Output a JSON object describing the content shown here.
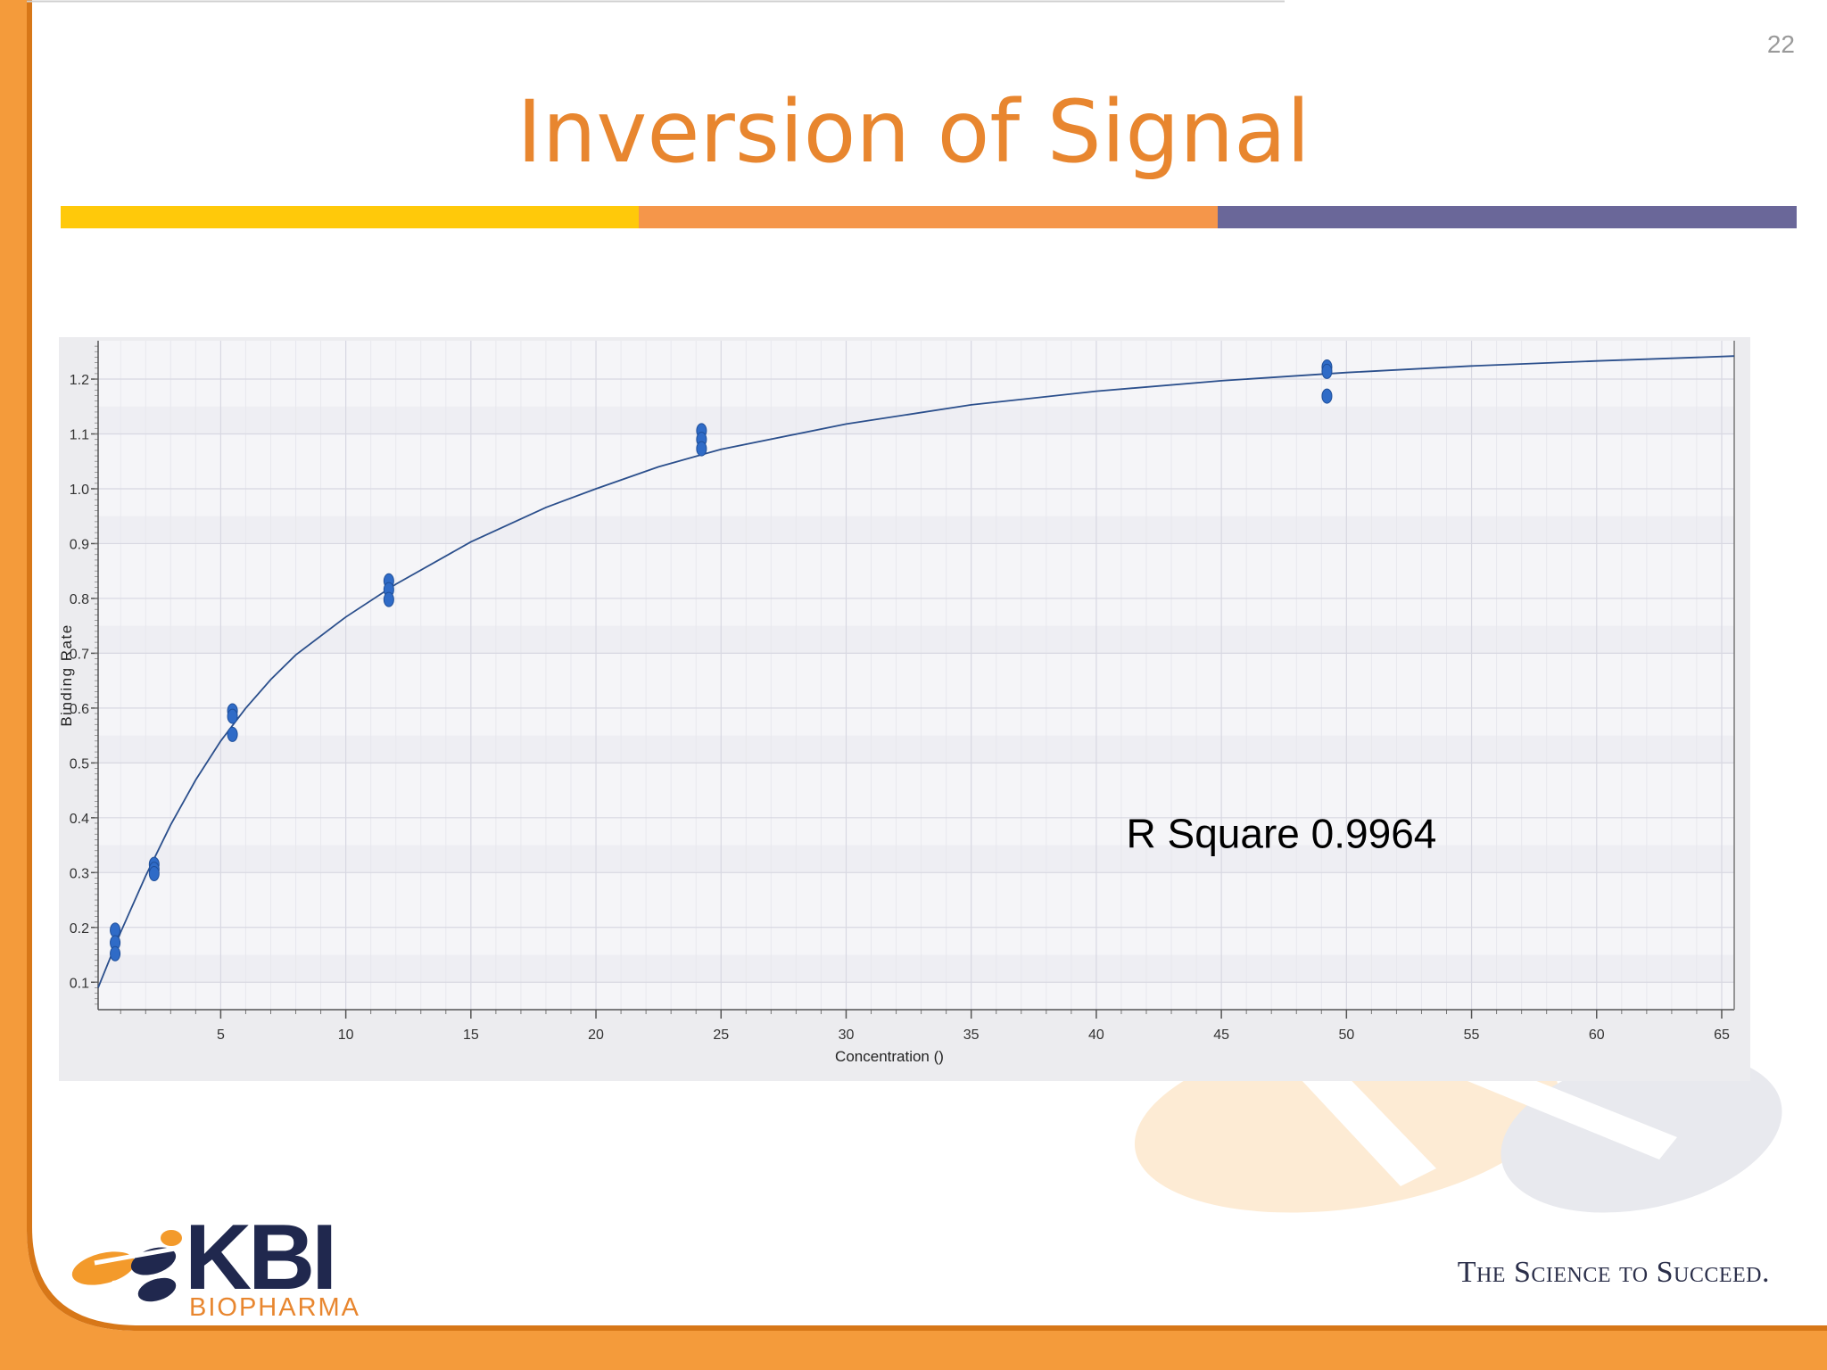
{
  "slide": {
    "page_number": "22",
    "title": "Inversion of Signal",
    "tagline": "The Science to Succeed.",
    "logo": {
      "name": "KBI",
      "subtitle": "BIOPHARMA"
    },
    "colors": {
      "accent_orange": "#e8862f",
      "bar_yellow": "#ffc90a",
      "bar_orange": "#f5964a",
      "bar_purple": "#6a6799",
      "brand_navy": "#20284e"
    }
  },
  "chart_data": {
    "type": "scatter",
    "title": "",
    "xlabel": "Concentration ()",
    "ylabel": "Binding Rate",
    "xlim": [
      0.1,
      65.5
    ],
    "ylim": [
      0.05,
      1.27
    ],
    "x_ticks": [
      "5",
      "10",
      "15",
      "20",
      "25",
      "30",
      "35",
      "40",
      "45",
      "50",
      "55",
      "60",
      "65"
    ],
    "y_ticks": [
      "0.1",
      "0.2",
      "0.3",
      "0.4",
      "0.5",
      "0.6",
      "0.7",
      "0.8",
      "0.9",
      "1.0",
      "1.1",
      "1.2"
    ],
    "grid": true,
    "annotation": "R Square 0.9964",
    "series": [
      {
        "points": [
          {
            "x": 0.78,
            "y": 0.195
          },
          {
            "x": 0.78,
            "y": 0.172
          },
          {
            "x": 0.78,
            "y": 0.152
          },
          {
            "x": 2.34,
            "y": 0.315
          },
          {
            "x": 2.34,
            "y": 0.306
          },
          {
            "x": 2.34,
            "y": 0.298
          },
          {
            "x": 5.47,
            "y": 0.595
          },
          {
            "x": 5.47,
            "y": 0.585
          },
          {
            "x": 5.47,
            "y": 0.552
          },
          {
            "x": 11.72,
            "y": 0.832
          },
          {
            "x": 11.72,
            "y": 0.816
          },
          {
            "x": 11.72,
            "y": 0.798
          },
          {
            "x": 24.22,
            "y": 1.106
          },
          {
            "x": 24.22,
            "y": 1.09
          },
          {
            "x": 24.22,
            "y": 1.073
          },
          {
            "x": 49.22,
            "y": 1.222
          },
          {
            "x": 49.22,
            "y": 1.214
          },
          {
            "x": 49.22,
            "y": 1.169
          }
        ]
      }
    ],
    "fit_curve": {
      "x": [
        0.1,
        1,
        2,
        3,
        4,
        5,
        6,
        7,
        8,
        10,
        12,
        15,
        18,
        20,
        22.5,
        25,
        30,
        35,
        40,
        45,
        50,
        55,
        60,
        65.5
      ],
      "y": [
        0.09,
        0.191,
        0.294,
        0.387,
        0.469,
        0.54,
        0.6,
        0.652,
        0.697,
        0.766,
        0.826,
        0.903,
        0.966,
        1.0,
        1.04,
        1.072,
        1.118,
        1.153,
        1.178,
        1.197,
        1.212,
        1.224,
        1.233,
        1.242
      ]
    },
    "colors": {
      "points": "#2f6bc7",
      "curve": "#2b4f8c",
      "plot_bg": "#f5f5f8",
      "grid": "#d8d8e2"
    }
  }
}
